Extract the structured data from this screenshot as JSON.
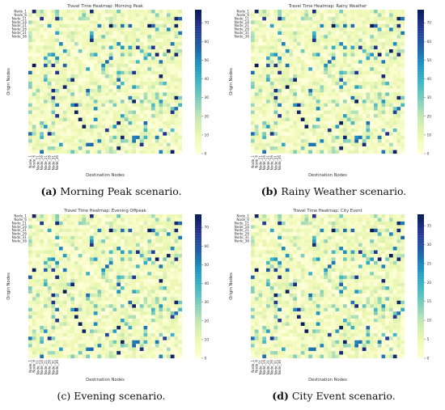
{
  "colors": {
    "low": "#ffffd9",
    "mid": "#41b6c4",
    "high": "#081d58"
  },
  "panels": [
    {
      "label": "(a)",
      "caption": "Morning Peak scenario.",
      "label_bold": true
    },
    {
      "label": "(b)",
      "caption": "Rainy Weather scenario.",
      "label_bold": true
    },
    {
      "label": "(c)",
      "caption": "Evening scenario.",
      "label_bold": false
    },
    {
      "label": "(d)",
      "caption": "City Event scenario.",
      "label_bold": true
    }
  ],
  "chart_data": [
    {
      "type": "heatmap",
      "title": "Travel Time Heatmap: Morning Peak",
      "xlabel": "Destination Nodes",
      "ylabel": "Origin Nodes",
      "row_tick_labels": [
        "Node_1",
        "Node_6",
        "Node_11",
        "Node_16",
        "Node_21",
        "Node_26",
        "Node_31",
        "Node_36"
      ],
      "col_tick_labels": [
        "Node_1",
        "Node_6",
        "Node_11",
        "Node_16",
        "Node_21",
        "Node_26",
        "Node_31",
        "Node_36"
      ],
      "colorbar_ticks": [
        0,
        10,
        20,
        30,
        40,
        50,
        60,
        70
      ],
      "vmin": 0,
      "vmax": 77
    },
    {
      "type": "heatmap",
      "title": "Travel Time Heatmap: Rainy Weather",
      "xlabel": "Destination Nodes",
      "ylabel": "Origin Nodes",
      "row_tick_labels": [
        "Node_1",
        "Node_6",
        "Node_11",
        "Node_16",
        "Node_21",
        "Node_26",
        "Node_31",
        "Node_36"
      ],
      "col_tick_labels": [
        "Node_1",
        "Node_6",
        "Node_11",
        "Node_16",
        "Node_21",
        "Node_26",
        "Node_31",
        "Node_36"
      ],
      "colorbar_ticks": [
        0,
        10,
        20,
        30,
        40,
        50,
        60,
        70
      ],
      "vmin": 0,
      "vmax": 77
    },
    {
      "type": "heatmap",
      "title": "Travel Time Heatmap: Evening Offpeak",
      "xlabel": "Destination Nodes",
      "ylabel": "Origin Nodes",
      "row_tick_labels": [
        "Node_1",
        "Node_6",
        "Node_11",
        "Node_16",
        "Node_21",
        "Node_26",
        "Node_31",
        "Node_36"
      ],
      "col_tick_labels": [
        "Node_1",
        "Node_6",
        "Node_11",
        "Node_16",
        "Node_21",
        "Node_26",
        "Node_31",
        "Node_36"
      ],
      "colorbar_ticks": [
        0,
        10,
        20,
        30,
        40,
        50,
        60,
        70
      ],
      "vmin": 0,
      "vmax": 77
    },
    {
      "type": "heatmap",
      "title": "Travel Time Heatmap: City Event",
      "xlabel": "Destination Nodes",
      "ylabel": "Origin Nodes",
      "row_tick_labels": [
        "Node_1",
        "Node_6",
        "Node_11",
        "Node_16",
        "Node_21",
        "Node_26",
        "Node_31",
        "Node_36"
      ],
      "col_tick_labels": [
        "Node_1",
        "Node_6",
        "Node_11",
        "Node_16",
        "Node_21",
        "Node_26",
        "Node_31",
        "Node_36"
      ],
      "colorbar_ticks": [
        0,
        5,
        10,
        15,
        20,
        25,
        30,
        35
      ],
      "vmin": 0,
      "vmax": 38
    }
  ]
}
